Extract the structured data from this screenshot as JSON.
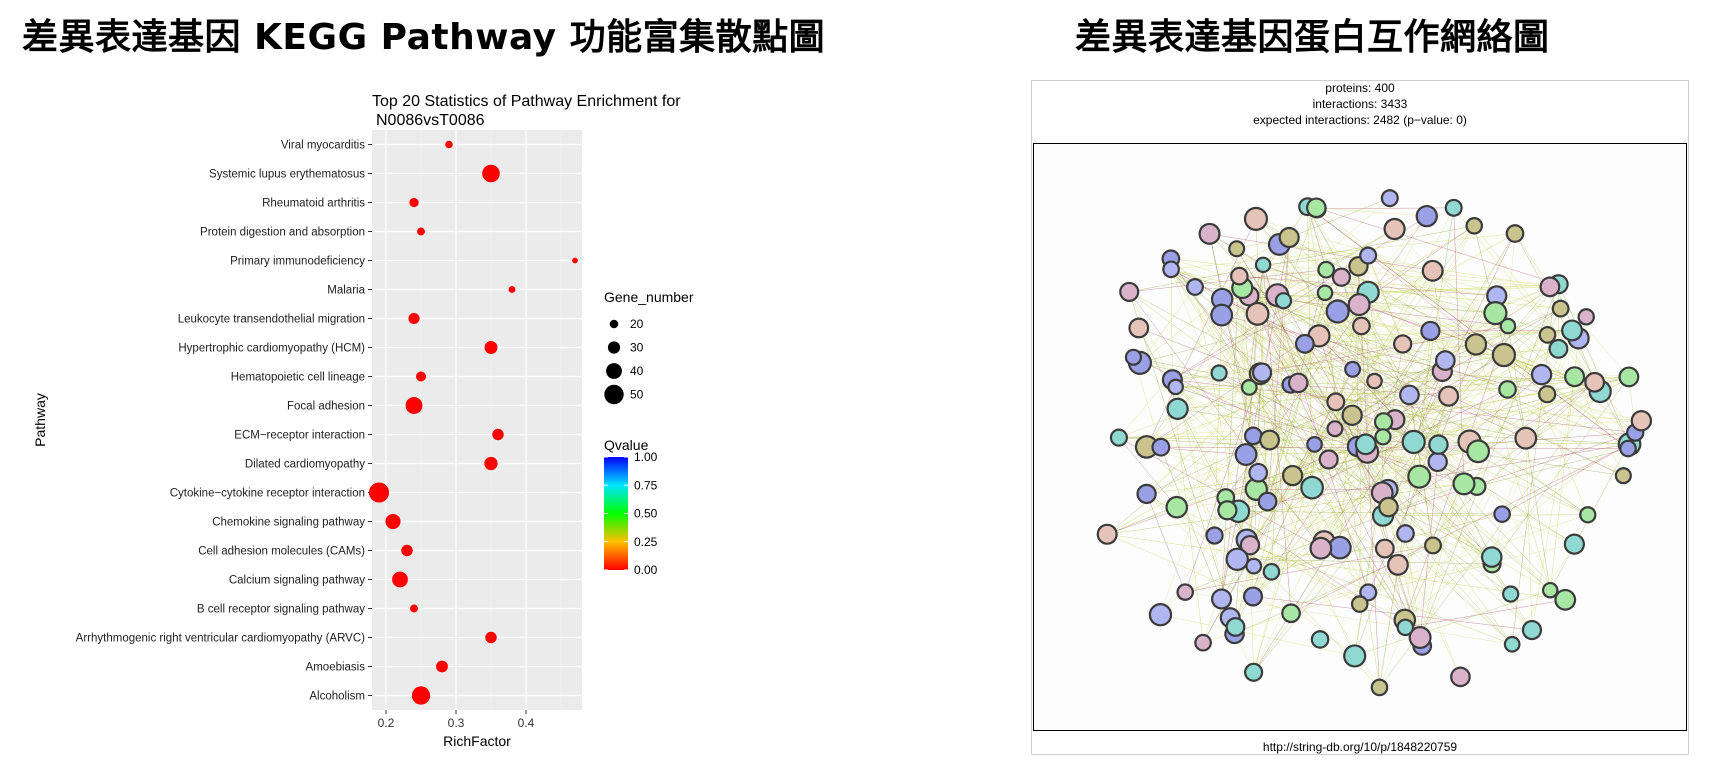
{
  "headings": {
    "left": "差異表達基因 KEGG Pathway 功能富集散點圖",
    "right": "差異表達基因蛋白互作網絡圖"
  },
  "chart_data": {
    "type": "scatter",
    "title": "Top 20 Statistics of Pathway Enrichment for",
    "subtitle": "N0086vsT0086",
    "xlabel": "RichFactor",
    "ylabel": "Pathway",
    "xlim": [
      0.18,
      0.48
    ],
    "xticks": [
      "0.2",
      "0.3",
      "0.4"
    ],
    "xtick_values": [
      0.2,
      0.3,
      0.4
    ],
    "grid": true,
    "point_color": "#ff0000",
    "categories": [
      "Viral myocarditis",
      "Systemic lupus erythematosus",
      "Rheumatoid arthritis",
      "Protein digestion and absorption",
      "Primary immunodeficiency",
      "Malaria",
      "Leukocyte transendothelial migration",
      "Hypertrophic cardiomyopathy (HCM)",
      "Hematopoietic cell lineage",
      "Focal adhesion",
      "ECM−receptor interaction",
      "Dilated cardiomyopathy",
      "Cytokine−cytokine receptor interaction",
      "Chemokine signaling pathway",
      "Cell adhesion molecules (CAMs)",
      "Calcium signaling pathway",
      "B cell receptor signaling pathway",
      "Arrhythmogenic right ventricular cardiomyopathy (ARVC)",
      "Amoebiasis",
      "Alcoholism"
    ],
    "rich_factor": [
      0.29,
      0.35,
      0.24,
      0.25,
      0.47,
      0.38,
      0.24,
      0.35,
      0.25,
      0.24,
      0.36,
      0.35,
      0.19,
      0.21,
      0.23,
      0.22,
      0.24,
      0.35,
      0.28,
      0.25
    ],
    "gene_number": [
      17,
      45,
      22,
      18,
      12,
      15,
      27,
      32,
      24,
      43,
      28,
      33,
      52,
      38,
      28,
      40,
      18,
      28,
      29,
      47
    ],
    "qvalue": [
      0,
      0,
      0,
      0,
      0,
      0,
      0,
      0,
      0,
      0,
      0,
      0,
      0,
      0,
      0,
      0,
      0,
      0,
      0,
      0
    ],
    "size_legend": {
      "title": "Gene_number",
      "labels": [
        "20",
        "30",
        "40",
        "50"
      ],
      "values": [
        20,
        30,
        40,
        50
      ]
    },
    "color_legend": {
      "title": "Qvalue",
      "labels": [
        "1.00",
        "0.75",
        "0.50",
        "0.25",
        "0.00"
      ],
      "values": [
        1.0,
        0.75,
        0.5,
        0.25,
        0.0
      ],
      "colors": [
        "#0000ff",
        "#00e5ff",
        "#00ff00",
        "#ffbf00",
        "#ff0000"
      ]
    }
  },
  "network": {
    "proteins": "proteins: 400",
    "interactions": "interactions: 3433",
    "expected": "expected interactions: 2482 (p−value: 0)",
    "url": "http://string-db.org/10/p/1848220759"
  }
}
